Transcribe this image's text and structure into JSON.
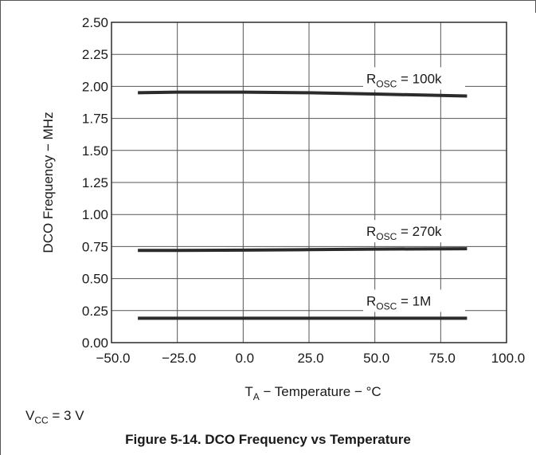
{
  "figure": {
    "caption": "Figure 5-14. DCO Frequency vs Temperature",
    "note": {
      "prefix": "V",
      "sub": "CC",
      "suffix": " = 3 V"
    }
  },
  "colors": {
    "line": "#2b2b2b",
    "grid": "#555555",
    "text": "#1a1a1a"
  },
  "chart_data": {
    "type": "line",
    "title": "",
    "xlabel": {
      "prefix": "T",
      "sub": "A",
      "suffix": " − Temperature − °C"
    },
    "ylabel": "DCO Frequency − MHz",
    "xlim": [
      -50,
      100
    ],
    "ylim": [
      0,
      2.5
    ],
    "x_ticks": [
      -50,
      -25,
      0,
      25,
      50,
      75,
      100
    ],
    "x_tick_labels": [
      "−50.0",
      "−25.0",
      "0.0",
      "25.0",
      "50.0",
      "75.0",
      "100.0"
    ],
    "y_ticks": [
      0,
      0.25,
      0.5,
      0.75,
      1.0,
      1.25,
      1.5,
      1.75,
      2.0,
      2.25,
      2.5
    ],
    "y_tick_labels": [
      "0.00",
      "0.25",
      "0.50",
      "0.75",
      "1.00",
      "1.25",
      "1.50",
      "1.75",
      "2.00",
      "2.25",
      "2.50"
    ],
    "grid": true,
    "legend": "none",
    "series": [
      {
        "label": {
          "prefix": "R",
          "sub": "OSC",
          "suffix": " = 100k"
        },
        "x": [
          -40,
          -25,
          0,
          25,
          50,
          85
        ],
        "y": [
          1.95,
          1.955,
          1.955,
          1.95,
          1.94,
          1.925
        ]
      },
      {
        "label": {
          "prefix": "R",
          "sub": "OSC",
          "suffix": " = 270k"
        },
        "x": [
          -40,
          -25,
          0,
          25,
          50,
          85
        ],
        "y": [
          0.72,
          0.72,
          0.722,
          0.726,
          0.73,
          0.733
        ]
      },
      {
        "label": {
          "prefix": "R",
          "sub": "OSC",
          "suffix": " = 1M"
        },
        "x": [
          -40,
          -25,
          0,
          25,
          50,
          85
        ],
        "y": [
          0.19,
          0.19,
          0.19,
          0.19,
          0.19,
          0.19
        ]
      }
    ]
  }
}
